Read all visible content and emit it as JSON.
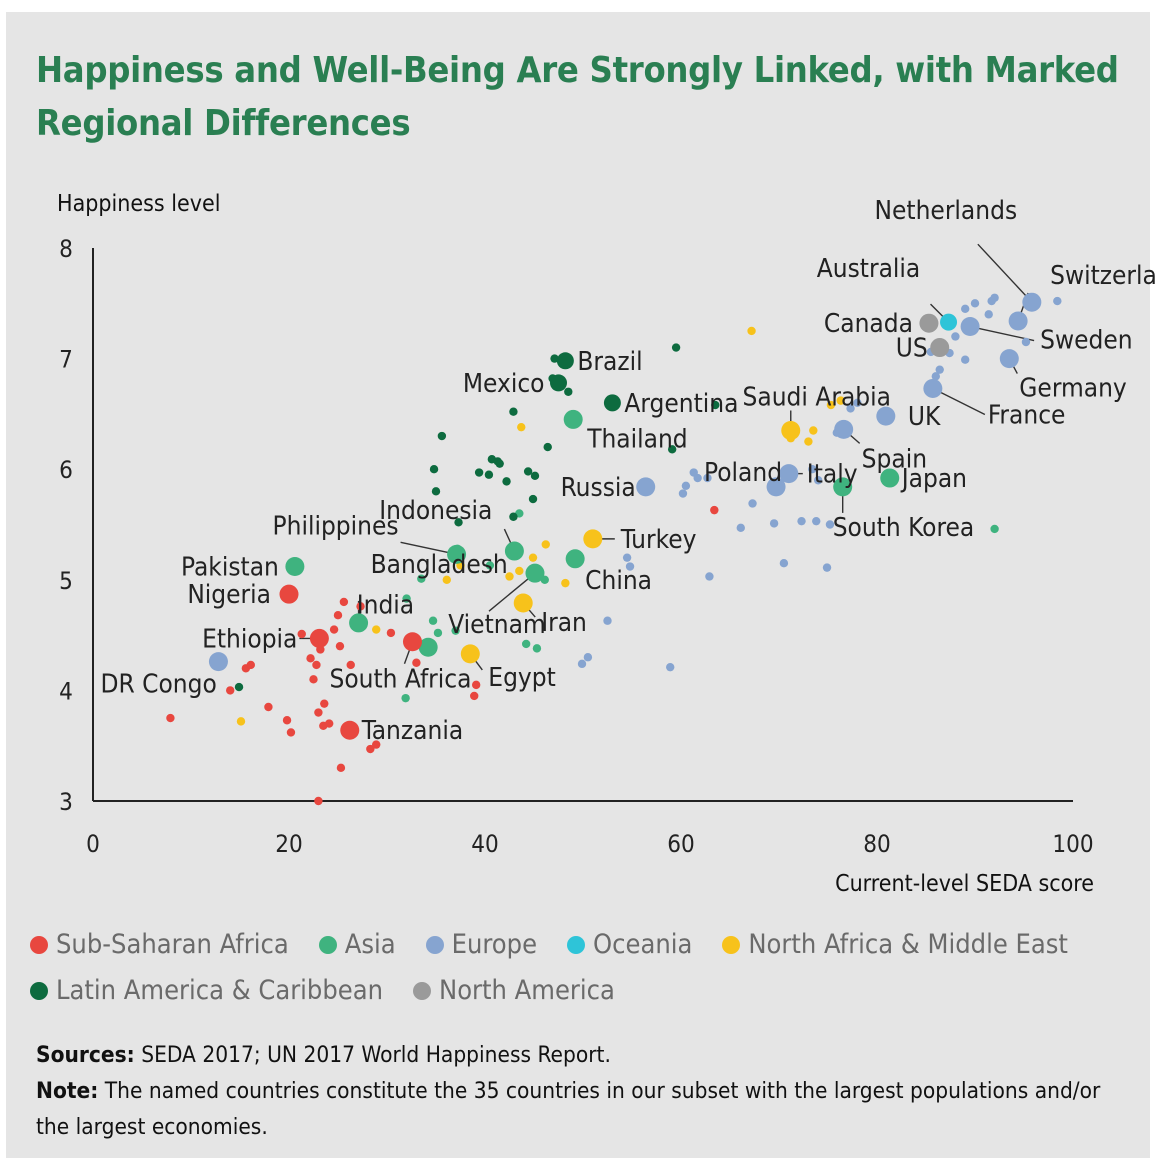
{
  "title": "Happiness and Well-Being Are Strongly Linked, with Marked Regional Differences",
  "sources_label": "Sources:",
  "sources_text": "SEDA 2017; UN 2017 World Happiness Report.",
  "note_label": "Note:",
  "note_text": "The named countries constitute the 35 countries in our subset with the largest populations and/or the largest economies.",
  "chart_data": {
    "type": "scatter",
    "xlabel": "Current-level SEDA score",
    "ylabel": "Happiness level",
    "xlim": [
      0,
      100
    ],
    "ylim": [
      3,
      8
    ],
    "xticks": [
      "0",
      "20",
      "40",
      "60",
      "80",
      "100"
    ],
    "yticks": [
      "3",
      "4",
      "5",
      "6",
      "7",
      "8"
    ],
    "grid": false,
    "legend_position": "bottom",
    "regions": [
      {
        "key": "ssa",
        "name": "Sub-Saharan Africa",
        "color": "#e8473f"
      },
      {
        "key": "asia",
        "name": "Asia",
        "color": "#3fb37f"
      },
      {
        "key": "eur",
        "name": "Europe",
        "color": "#86a4d0"
      },
      {
        "key": "oce",
        "name": "Oceania",
        "color": "#2ec4d8"
      },
      {
        "key": "mena",
        "name": "North Africa & Middle East",
        "color": "#f7c21b"
      },
      {
        "key": "lac",
        "name": "Latin America & Caribbean",
        "color": "#0d6b3f"
      },
      {
        "key": "na",
        "name": "North America",
        "color": "#9a9a9a"
      }
    ],
    "labeled_points": [
      {
        "name": "Netherlands",
        "region": "eur",
        "x": 95.8,
        "y": 7.51
      },
      {
        "name": "Switzerland",
        "region": "eur",
        "x": 94.4,
        "y": 7.34
      },
      {
        "name": "Australia",
        "region": "oce",
        "x": 87.3,
        "y": 7.33
      },
      {
        "name": "Sweden",
        "region": "eur",
        "x": 89.5,
        "y": 7.29
      },
      {
        "name": "Canada",
        "region": "na",
        "x": 85.3,
        "y": 7.32
      },
      {
        "name": "US",
        "region": "na",
        "x": 86.4,
        "y": 7.1
      },
      {
        "name": "Germany",
        "region": "eur",
        "x": 93.5,
        "y": 7.0
      },
      {
        "name": "Brazil",
        "region": "lac",
        "x": 48.2,
        "y": 6.98
      },
      {
        "name": "Mexico",
        "region": "lac",
        "x": 47.5,
        "y": 6.78
      },
      {
        "name": "Argentina",
        "region": "lac",
        "x": 53.0,
        "y": 6.6
      },
      {
        "name": "Thailand",
        "region": "asia",
        "x": 49.0,
        "y": 6.45
      },
      {
        "name": "Saudi Arabia",
        "region": "mena",
        "x": 71.2,
        "y": 6.35
      },
      {
        "name": "UK",
        "region": "eur",
        "x": 80.9,
        "y": 6.48
      },
      {
        "name": "France",
        "region": "eur",
        "x": 85.7,
        "y": 6.73
      },
      {
        "name": "Spain",
        "region": "eur",
        "x": 76.6,
        "y": 6.36
      },
      {
        "name": "Italy",
        "region": "eur",
        "x": 71.0,
        "y": 5.96
      },
      {
        "name": "Poland",
        "region": "eur",
        "x": 69.7,
        "y": 5.84
      },
      {
        "name": "Japan",
        "region": "asia",
        "x": 81.3,
        "y": 5.92
      },
      {
        "name": "South Korea",
        "region": "asia",
        "x": 76.5,
        "y": 5.84
      },
      {
        "name": "Russia",
        "region": "eur",
        "x": 56.4,
        "y": 5.84
      },
      {
        "name": "Indonesia",
        "region": "asia",
        "x": 43.0,
        "y": 5.26
      },
      {
        "name": "Philippines",
        "region": "asia",
        "x": 37.1,
        "y": 5.23
      },
      {
        "name": "Turkey",
        "region": "mena",
        "x": 51.0,
        "y": 5.37
      },
      {
        "name": "China",
        "region": "asia",
        "x": 49.2,
        "y": 5.19
      },
      {
        "name": "Pakistan",
        "region": "asia",
        "x": 20.6,
        "y": 5.12
      },
      {
        "name": "Bangladesh",
        "region": "asia",
        "x": 27.1,
        "y": 4.61
      },
      {
        "name": "Vietnam",
        "region": "asia",
        "x": 45.1,
        "y": 5.06
      },
      {
        "name": "Nigeria",
        "region": "ssa",
        "x": 20.0,
        "y": 4.87
      },
      {
        "name": "India",
        "region": "asia",
        "x": 34.2,
        "y": 4.39
      },
      {
        "name": "Iran",
        "region": "mena",
        "x": 43.9,
        "y": 4.79
      },
      {
        "name": "Ethiopia",
        "region": "ssa",
        "x": 23.1,
        "y": 4.47
      },
      {
        "name": "South Africa",
        "region": "ssa",
        "x": 32.6,
        "y": 4.44
      },
      {
        "name": "Egypt",
        "region": "mena",
        "x": 38.5,
        "y": 4.33
      },
      {
        "name": "DR Congo",
        "region": "eur",
        "x": 12.8,
        "y": 4.26
      },
      {
        "name": "Tanzania",
        "region": "ssa",
        "x": 26.2,
        "y": 3.64
      }
    ],
    "other_points": {
      "ssa": [
        [
          7.9,
          3.75
        ],
        [
          14.0,
          4.0
        ],
        [
          15.6,
          4.2
        ],
        [
          16.1,
          4.23
        ],
        [
          17.9,
          3.85
        ],
        [
          19.8,
          3.73
        ],
        [
          20.2,
          3.62
        ],
        [
          21.3,
          4.51
        ],
        [
          22.2,
          4.29
        ],
        [
          22.5,
          4.1
        ],
        [
          22.8,
          4.23
        ],
        [
          23.0,
          3.8
        ],
        [
          23.2,
          4.37
        ],
        [
          23.5,
          3.68
        ],
        [
          23.6,
          3.88
        ],
        [
          24.1,
          3.7
        ],
        [
          24.6,
          4.55
        ],
        [
          25.0,
          4.68
        ],
        [
          25.2,
          4.4
        ],
        [
          25.6,
          4.8
        ],
        [
          25.3,
          3.3
        ],
        [
          26.3,
          4.23
        ],
        [
          27.3,
          4.76
        ],
        [
          28.3,
          3.47
        ],
        [
          28.9,
          3.51
        ],
        [
          30.4,
          4.52
        ],
        [
          33.0,
          4.25
        ],
        [
          39.1,
          4.05
        ],
        [
          38.9,
          3.95
        ],
        [
          23.0,
          3.0
        ],
        [
          63.4,
          5.63
        ]
      ],
      "asia": [
        [
          31.9,
          3.93
        ],
        [
          32.0,
          4.83
        ],
        [
          33.5,
          5.01
        ],
        [
          34.7,
          4.63
        ],
        [
          35.2,
          4.52
        ],
        [
          37.0,
          4.54
        ],
        [
          37.2,
          5.28
        ],
        [
          40.5,
          5.13
        ],
        [
          44.2,
          4.42
        ],
        [
          45.3,
          4.38
        ],
        [
          46.1,
          5.0
        ],
        [
          92.0,
          5.46
        ],
        [
          43.5,
          5.6
        ]
      ],
      "eur": [
        [
          54.8,
          5.12
        ],
        [
          54.5,
          5.2
        ],
        [
          49.9,
          4.24
        ],
        [
          50.5,
          4.3
        ],
        [
          52.5,
          4.63
        ],
        [
          58.9,
          4.21
        ],
        [
          62.9,
          5.03
        ],
        [
          61.3,
          5.97
        ],
        [
          61.7,
          5.92
        ],
        [
          60.2,
          5.78
        ],
        [
          60.5,
          5.85
        ],
        [
          62.7,
          5.92
        ],
        [
          66.1,
          5.47
        ],
        [
          67.3,
          5.69
        ],
        [
          69.5,
          5.51
        ],
        [
          72.3,
          5.53
        ],
        [
          73.8,
          5.53
        ],
        [
          70.5,
          5.15
        ],
        [
          74.9,
          5.11
        ],
        [
          75.2,
          5.5
        ],
        [
          77.3,
          6.55
        ],
        [
          78.0,
          6.6
        ],
        [
          73.4,
          6.0
        ],
        [
          74.0,
          5.9
        ],
        [
          75.9,
          6.33
        ],
        [
          87.4,
          7.05
        ],
        [
          88.0,
          7.2
        ],
        [
          86.4,
          6.9
        ],
        [
          89.0,
          7.45
        ],
        [
          90.0,
          7.5
        ],
        [
          91.4,
          7.4
        ],
        [
          91.7,
          7.52
        ],
        [
          92.0,
          7.55
        ],
        [
          95.2,
          7.15
        ],
        [
          98.4,
          7.52
        ],
        [
          86.0,
          6.84
        ],
        [
          89.0,
          6.99
        ],
        [
          85.5,
          7.06
        ]
      ],
      "mena": [
        [
          15.1,
          3.72
        ],
        [
          28.9,
          4.55
        ],
        [
          36.1,
          5.0
        ],
        [
          37.5,
          5.13
        ],
        [
          42.5,
          5.03
        ],
        [
          43.5,
          5.08
        ],
        [
          44.9,
          5.2
        ],
        [
          46.2,
          5.32
        ],
        [
          48.2,
          4.97
        ],
        [
          43.7,
          6.38
        ],
        [
          67.2,
          7.25
        ],
        [
          71.2,
          6.28
        ],
        [
          73.0,
          6.25
        ],
        [
          73.5,
          6.35
        ],
        [
          75.3,
          6.58
        ],
        [
          76.3,
          6.62
        ]
      ],
      "lac": [
        [
          14.9,
          4.03
        ],
        [
          34.8,
          6.0
        ],
        [
          35.0,
          5.8
        ],
        [
          35.6,
          6.3
        ],
        [
          37.3,
          5.52
        ],
        [
          39.4,
          5.97
        ],
        [
          40.4,
          5.95
        ],
        [
          40.7,
          6.09
        ],
        [
          41.3,
          6.07
        ],
        [
          41.5,
          6.05
        ],
        [
          42.2,
          5.89
        ],
        [
          42.9,
          5.57
        ],
        [
          42.9,
          6.52
        ],
        [
          44.4,
          5.98
        ],
        [
          44.9,
          5.73
        ],
        [
          45.1,
          5.94
        ],
        [
          46.4,
          6.2
        ],
        [
          46.9,
          6.82
        ],
        [
          47.1,
          7.0
        ],
        [
          48.5,
          6.7
        ],
        [
          59.1,
          6.18
        ],
        [
          59.5,
          7.1
        ],
        [
          63.5,
          6.58
        ]
      ],
      "na": []
    }
  }
}
